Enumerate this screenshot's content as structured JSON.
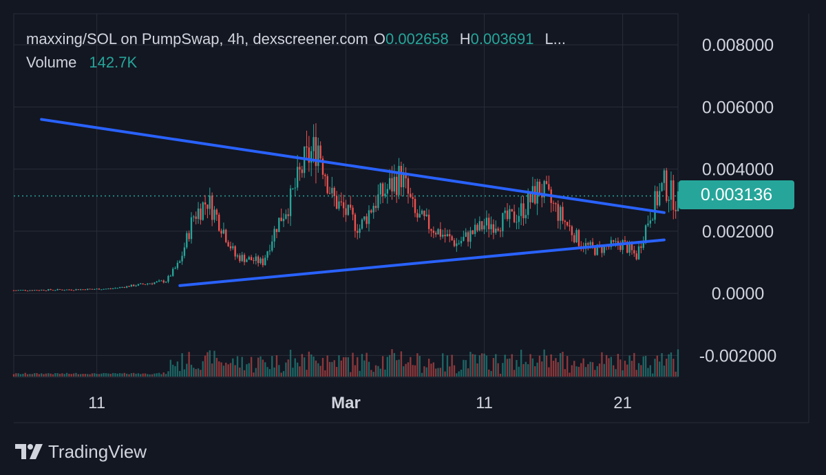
{
  "legend": {
    "symbol_line": "maxxing/SOL on PumpSwap, 4h, dexscreener.com",
    "o_label": "O",
    "o_value": "0.002658",
    "h_label": "H",
    "h_value": "0.003691",
    "truncated": "L...",
    "volume_label": "Volume",
    "volume_value": "142.7K"
  },
  "price_badge": "0.003136",
  "brand": "TradingView",
  "colors": {
    "background": "#131722",
    "up": "#26a69a",
    "down": "#ef5350",
    "trendline": "#2962ff",
    "grid": "#2a2e39",
    "text": "#d1d4dc"
  },
  "chart_data": {
    "type": "candlestick",
    "title": "maxxing/SOL on PumpSwap, 4h, dexscreener.com",
    "y_axis": {
      "ticks": [
        0.008,
        0.006,
        0.004,
        0.002,
        0.0,
        -0.002
      ],
      "tick_labels": [
        "0.008000",
        "0.006000",
        "0.004000",
        "0.002000",
        "0.0000",
        "-0.002000"
      ],
      "ylim": [
        -0.0027,
        0.009
      ],
      "position": "right"
    },
    "x_axis": {
      "labels": [
        "11",
        "Mar",
        "11",
        "21"
      ],
      "label_dates": [
        "2025-02-11",
        "2025-03-01",
        "2025-03-11",
        "2025-03-21"
      ],
      "range": [
        "2025-02-05",
        "2025-03-25"
      ]
    },
    "last_price": 0.003136,
    "grid": true,
    "trendlines": [
      {
        "name": "",
        "from": {
          "date": "2025-02-07",
          "price": 0.0056
        },
        "to": {
          "date": "2025-03-24",
          "price": 0.0026
        }
      },
      {
        "name": "",
        "from": {
          "date": "2025-02-17",
          "price": 0.00025
        },
        "to": {
          "date": "2025-03-24",
          "price": 0.00172
        }
      }
    ],
    "price_series": {
      "name": "Price",
      "points": [
        {
          "date": "2025-02-05",
          "close": 0.0001
        },
        {
          "date": "2025-02-09",
          "close": 0.00012
        },
        {
          "date": "2025-02-12",
          "close": 0.00015
        },
        {
          "date": "2025-02-16",
          "close": 0.0004
        },
        {
          "date": "2025-02-17",
          "close": 0.001
        },
        {
          "date": "2025-02-18",
          "close": 0.0025
        },
        {
          "date": "2025-02-19",
          "close": 0.003
        },
        {
          "date": "2025-02-20",
          "close": 0.0022
        },
        {
          "date": "2025-02-21",
          "close": 0.0012
        },
        {
          "date": "2025-02-23",
          "close": 0.001
        },
        {
          "date": "2025-02-24",
          "close": 0.0022
        },
        {
          "date": "2025-02-25",
          "close": 0.003
        },
        {
          "date": "2025-02-26",
          "close": 0.0042
        },
        {
          "date": "2025-02-27",
          "close": 0.0048
        },
        {
          "date": "2025-02-28",
          "close": 0.0031
        },
        {
          "date": "2025-03-02",
          "close": 0.0021
        },
        {
          "date": "2025-03-03",
          "close": 0.0029
        },
        {
          "date": "2025-03-05",
          "close": 0.0038
        },
        {
          "date": "2025-03-06",
          "close": 0.0025
        },
        {
          "date": "2025-03-08",
          "close": 0.0019
        },
        {
          "date": "2025-03-09",
          "close": 0.0016
        },
        {
          "date": "2025-03-11",
          "close": 0.0022
        },
        {
          "date": "2025-03-13",
          "close": 0.0024
        },
        {
          "date": "2025-03-14",
          "close": 0.0028
        },
        {
          "date": "2025-03-15",
          "close": 0.0034
        },
        {
          "date": "2025-03-16",
          "close": 0.0028
        },
        {
          "date": "2025-03-17",
          "close": 0.0022
        },
        {
          "date": "2025-03-18",
          "close": 0.0016
        },
        {
          "date": "2025-03-19",
          "close": 0.0014
        },
        {
          "date": "2025-03-21",
          "close": 0.0016
        },
        {
          "date": "2025-03-22",
          "close": 0.0012
        },
        {
          "date": "2025-03-23",
          "close": 0.0026
        },
        {
          "date": "2025-03-24",
          "close": 0.0035
        },
        {
          "date": "2025-03-25",
          "close": 0.0029
        },
        {
          "date": "2025-03-26",
          "close": 0.0024
        },
        {
          "date": "2025-03-27",
          "close": 0.003
        },
        {
          "date": "2025-03-28",
          "close": 0.00313
        }
      ]
    }
  }
}
